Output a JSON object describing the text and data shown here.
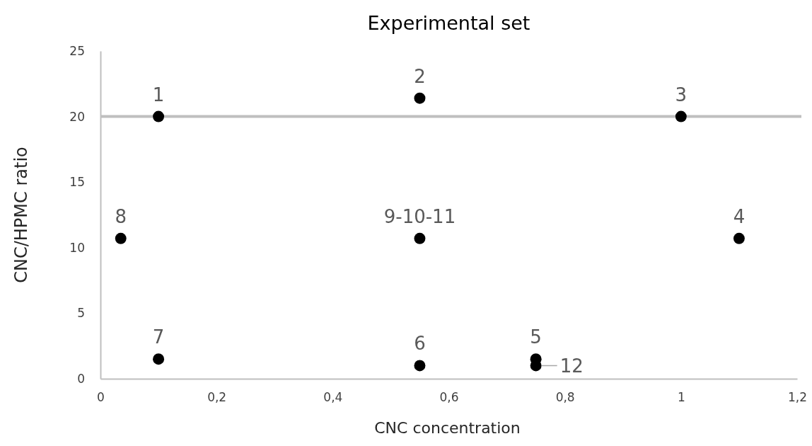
{
  "chart_data": {
    "type": "scatter",
    "title": "Experimental set",
    "xlabel": "CNC concentration",
    "ylabel": "CNC/HPMC ratio",
    "x": [
      0.1,
      0.55,
      1.0,
      1.1,
      0.75,
      0.55,
      0.1,
      0.035,
      0.55,
      0.75
    ],
    "series": [
      {
        "color": "#000000",
        "values": [
          20,
          21.4,
          20,
          10.7,
          1.5,
          1.0,
          1.5,
          10.7,
          10.7,
          1.0
        ]
      }
    ],
    "xlim": [
      0,
      1.2
    ],
    "xticks": [
      0,
      {
        "value": 0.2,
        "label": "0,2"
      },
      {
        "value": 0.4,
        "label": "0,4"
      },
      {
        "value": 0.6,
        "label": "0,6"
      },
      {
        "value": 0.8,
        "label": "0,8"
      },
      1,
      {
        "value": 1.2,
        "label": "1,2"
      }
    ],
    "ylim": [
      0,
      25
    ],
    "yticks": [
      0,
      5,
      10,
      15,
      20,
      25
    ],
    "grid": false,
    "marker": "circle",
    "ref_lines": [
      {
        "axis": "y",
        "value": 20,
        "color": "#bfbfbf"
      }
    ],
    "annotations": [
      {
        "text": "1",
        "x": 0.1,
        "y": 20
      },
      {
        "text": "2",
        "x": 0.55,
        "y": 21.4
      },
      {
        "text": "3",
        "x": 1.0,
        "y": 20
      },
      {
        "text": "4",
        "x": 1.1,
        "y": 10.7
      },
      {
        "text": "5",
        "x": 0.75,
        "y": 1.5
      },
      {
        "text": "6",
        "x": 0.55,
        "y": 1.0
      },
      {
        "text": "7",
        "x": 0.1,
        "y": 1.5
      },
      {
        "text": "8",
        "x": 0.035,
        "y": 10.7
      },
      {
        "text": "9-10-11",
        "x": 0.55,
        "y": 10.7
      },
      {
        "text": "12",
        "x": 0.75,
        "y": 1.0
      }
    ]
  }
}
